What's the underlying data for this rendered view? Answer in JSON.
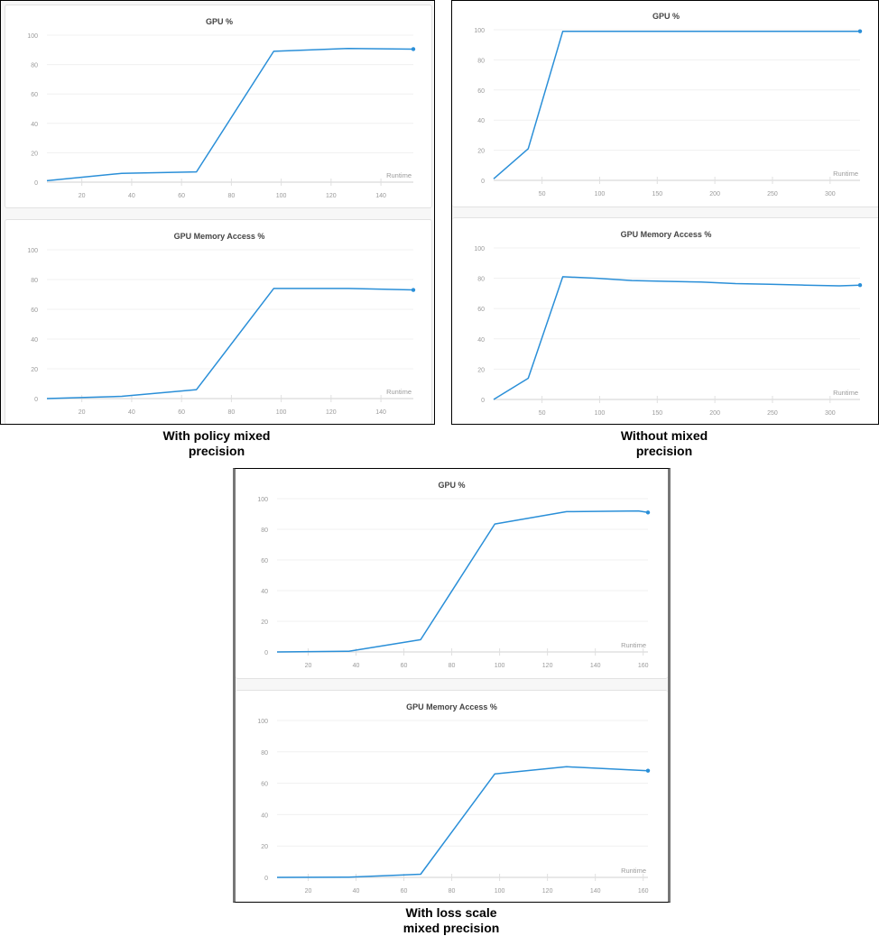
{
  "colors": {
    "line": "#2a8fd8",
    "grid": "#f0f0f0",
    "axis": "#e0e0e0",
    "tick_text": "#9a9a9a",
    "title_text": "#444444"
  },
  "panels": [
    {
      "caption": "With policy mixed\nprecision",
      "caption_line1": "With policy mixed",
      "caption_line2": "precision"
    },
    {
      "caption": "Without mixed\nprecision",
      "caption_line1": "Without mixed",
      "caption_line2": "precision"
    },
    {
      "caption": "With loss scale\nmixed precision",
      "caption_line1": "With loss scale",
      "caption_line2": "mixed precision"
    }
  ],
  "chart_data": [
    {
      "panel": "With policy mixed precision",
      "type": "line",
      "title": "GPU %",
      "xlabel": "Runtime",
      "ylabel": "",
      "xlim": [
        6,
        153
      ],
      "ylim": [
        0,
        100
      ],
      "xticks": [
        20,
        40,
        60,
        80,
        100,
        120,
        140
      ],
      "yticks": [
        0,
        20,
        40,
        60,
        80,
        100
      ],
      "grid": true,
      "x": [
        6,
        36,
        66,
        97,
        127,
        153
      ],
      "values": [
        1,
        6,
        7,
        89,
        91,
        90.5
      ]
    },
    {
      "panel": "With policy mixed precision",
      "type": "line",
      "title": "GPU Memory Access %",
      "xlabel": "Runtime",
      "ylabel": "",
      "xlim": [
        6,
        153
      ],
      "ylim": [
        0,
        100
      ],
      "xticks": [
        20,
        40,
        60,
        80,
        100,
        120,
        140
      ],
      "yticks": [
        0,
        20,
        40,
        60,
        80,
        100
      ],
      "grid": true,
      "x": [
        6,
        36,
        66,
        97,
        127,
        153
      ],
      "values": [
        0,
        1.5,
        6,
        74,
        74,
        73
      ]
    },
    {
      "panel": "Without mixed precision",
      "type": "line",
      "title": "GPU %",
      "xlabel": "Runtime",
      "ylabel": "",
      "xlim": [
        8,
        326
      ],
      "ylim": [
        0,
        100
      ],
      "xticks": [
        50,
        100,
        150,
        200,
        250,
        300
      ],
      "yticks": [
        0,
        20,
        40,
        60,
        80,
        100
      ],
      "grid": true,
      "x": [
        8,
        38,
        68,
        98,
        128,
        158,
        188,
        218,
        248,
        278,
        308,
        326
      ],
      "values": [
        1,
        21,
        99,
        99,
        99,
        99,
        99,
        99,
        99,
        99,
        99,
        99
      ]
    },
    {
      "panel": "Without mixed precision",
      "type": "line",
      "title": "GPU Memory Access %",
      "xlabel": "Runtime",
      "ylabel": "",
      "xlim": [
        8,
        326
      ],
      "ylim": [
        0,
        100
      ],
      "xticks": [
        50,
        100,
        150,
        200,
        250,
        300
      ],
      "yticks": [
        0,
        20,
        40,
        60,
        80,
        100
      ],
      "grid": true,
      "x": [
        8,
        38,
        68,
        98,
        128,
        158,
        188,
        218,
        248,
        278,
        308,
        326
      ],
      "values": [
        0,
        14,
        81,
        80,
        78.5,
        78,
        77.5,
        76.5,
        76,
        75.5,
        75,
        75.5
      ]
    },
    {
      "panel": "With loss scale mixed precision",
      "type": "line",
      "title": "GPU %",
      "xlabel": "Runtime",
      "ylabel": "",
      "xlim": [
        7,
        162
      ],
      "ylim": [
        0,
        100
      ],
      "xticks": [
        20,
        40,
        60,
        80,
        100,
        120,
        140,
        160
      ],
      "yticks": [
        0,
        20,
        40,
        60,
        80,
        100
      ],
      "grid": true,
      "x": [
        7,
        37,
        67,
        98,
        128,
        158,
        162
      ],
      "values": [
        0,
        0.5,
        8,
        83.5,
        91.5,
        92,
        91
      ]
    },
    {
      "panel": "With loss scale mixed precision",
      "type": "line",
      "title": "GPU Memory Access %",
      "xlabel": "Runtime",
      "ylabel": "",
      "xlim": [
        7,
        162
      ],
      "ylim": [
        0,
        100
      ],
      "xticks": [
        20,
        40,
        60,
        80,
        100,
        120,
        140,
        160
      ],
      "yticks": [
        0,
        20,
        40,
        60,
        80,
        100
      ],
      "grid": true,
      "x": [
        7,
        37,
        67,
        98,
        128,
        162
      ],
      "values": [
        0,
        0.2,
        2,
        66,
        70.5,
        68
      ]
    }
  ]
}
